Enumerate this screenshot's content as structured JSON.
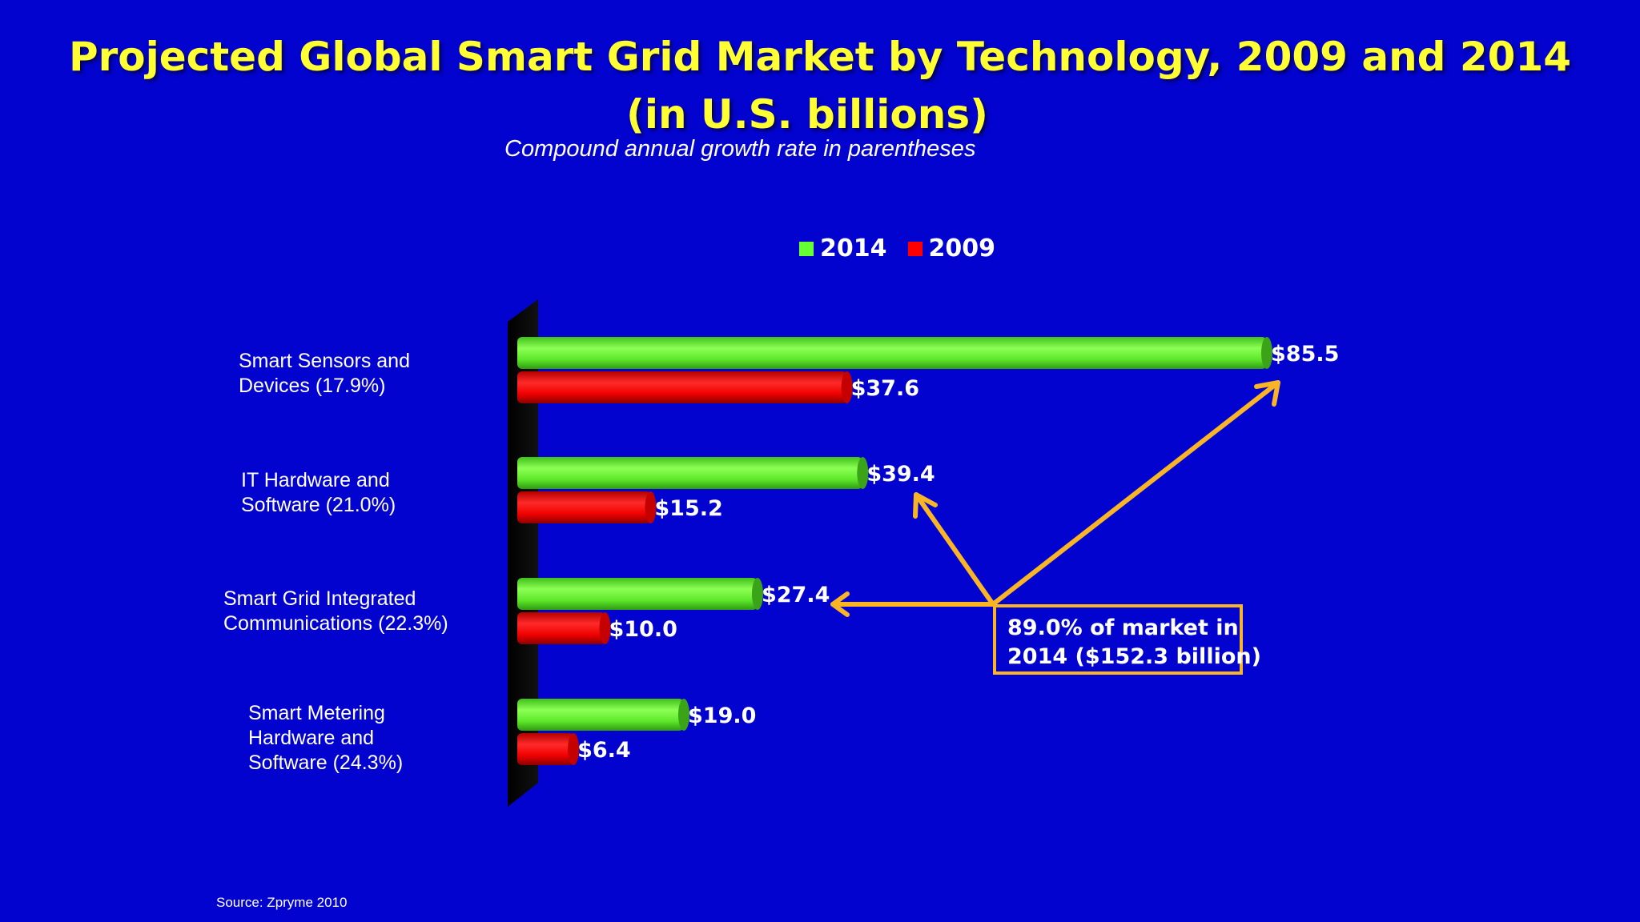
{
  "title_line1": "Projected Global Smart Grid Market by Technology, 2009 and 2014",
  "title_line2": "(in U.S. billions)",
  "subtitle": "Compound annual growth rate in parentheses",
  "source": "Source: Zpryme 2010",
  "callout": {
    "line1": "89.0% of market in",
    "line2": "2014 ($152.3 billion)"
  },
  "colors": {
    "background": "#0303cf",
    "title": "#ffff33",
    "series_2014": "#66ff33",
    "series_2009": "#ff0000",
    "callout": "#f9b526"
  },
  "chart_data": {
    "type": "bar",
    "orientation": "horizontal",
    "categories": [
      [
        "Smart Sensors and",
        "Devices (17.9%)"
      ],
      [
        "IT Hardware and",
        "Software (21.0%)"
      ],
      [
        "Smart Grid Integrated",
        "Communications (22.3%)"
      ],
      [
        "Smart Metering",
        "Hardware and",
        "Software (24.3%)"
      ]
    ],
    "series": [
      {
        "name": "2014",
        "values": [
          85.5,
          39.4,
          27.4,
          19.0
        ],
        "labels": [
          "$85.5",
          "$39.4",
          "$27.4",
          "$19.0"
        ]
      },
      {
        "name": "2009",
        "values": [
          37.6,
          15.2,
          10.0,
          6.4
        ],
        "labels": [
          "$37.6",
          "$15.2",
          "$10.0",
          "$6.4"
        ]
      }
    ],
    "legend_position": "top",
    "grid": false,
    "xlim": [
      0,
      85.5
    ]
  }
}
